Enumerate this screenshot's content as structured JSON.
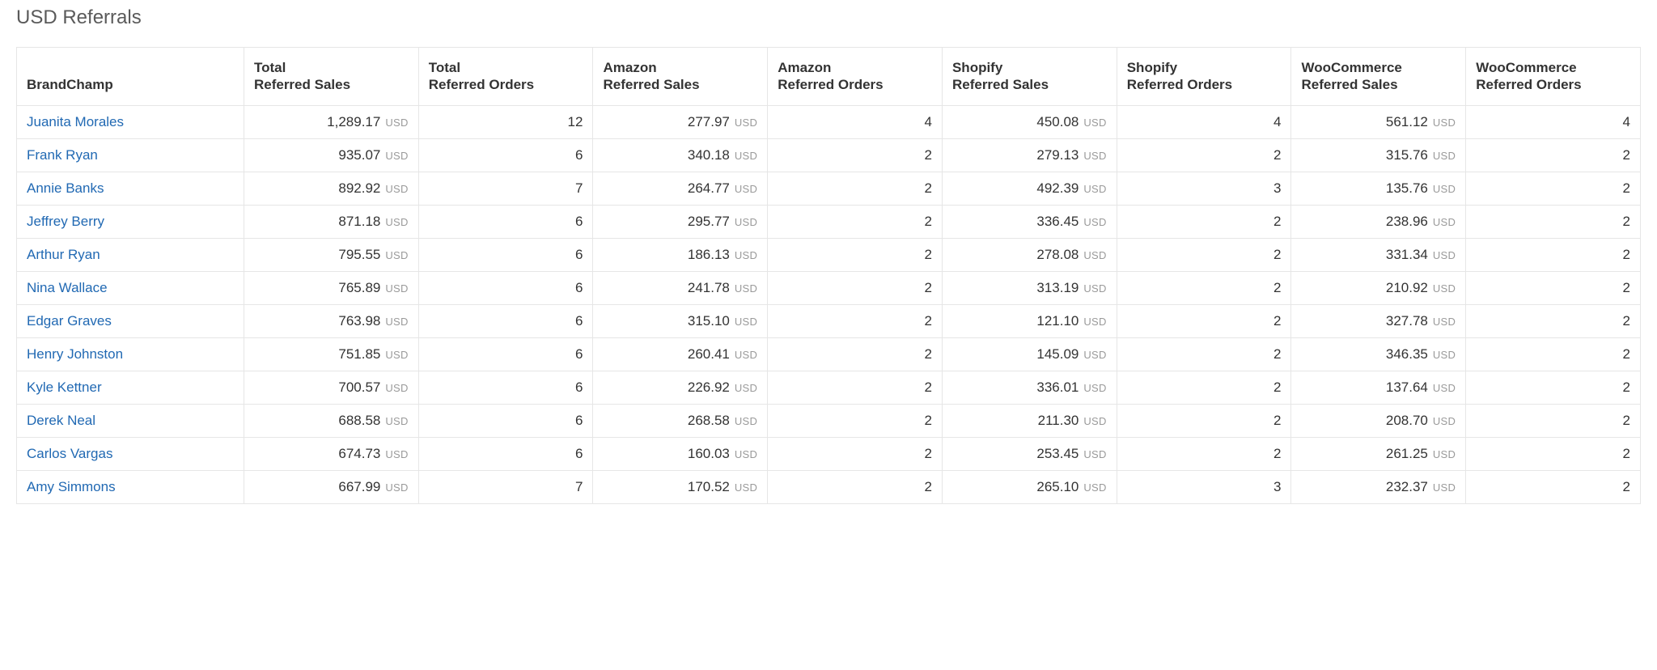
{
  "title": "USD Referrals",
  "currency_label": "USD",
  "colors": {
    "link": "#2169b3",
    "border": "#e6e6e6",
    "text": "#333333",
    "muted": "#9a9a9a",
    "title": "#5a5a5a",
    "background": "#ffffff"
  },
  "table": {
    "columns": [
      {
        "key": "name",
        "label": "BrandChamp",
        "type": "name"
      },
      {
        "key": "total_sales",
        "label": "Total\nReferred Sales",
        "type": "money"
      },
      {
        "key": "total_orders",
        "label": "Total\nReferred Orders",
        "type": "int"
      },
      {
        "key": "amazon_sales",
        "label": "Amazon\nReferred Sales",
        "type": "money"
      },
      {
        "key": "amazon_orders",
        "label": "Amazon\nReferred Orders",
        "type": "int"
      },
      {
        "key": "shopify_sales",
        "label": "Shopify\nReferred Sales",
        "type": "money"
      },
      {
        "key": "shopify_orders",
        "label": "Shopify\nReferred Orders",
        "type": "int"
      },
      {
        "key": "woo_sales",
        "label": "WooCommerce\nReferred Sales",
        "type": "money"
      },
      {
        "key": "woo_orders",
        "label": "WooCommerce\nReferred Orders",
        "type": "int"
      }
    ],
    "rows": [
      {
        "name": "Juanita Morales",
        "total_sales": "1,289.17",
        "total_orders": "12",
        "amazon_sales": "277.97",
        "amazon_orders": "4",
        "shopify_sales": "450.08",
        "shopify_orders": "4",
        "woo_sales": "561.12",
        "woo_orders": "4"
      },
      {
        "name": "Frank Ryan",
        "total_sales": "935.07",
        "total_orders": "6",
        "amazon_sales": "340.18",
        "amazon_orders": "2",
        "shopify_sales": "279.13",
        "shopify_orders": "2",
        "woo_sales": "315.76",
        "woo_orders": "2"
      },
      {
        "name": "Annie Banks",
        "total_sales": "892.92",
        "total_orders": "7",
        "amazon_sales": "264.77",
        "amazon_orders": "2",
        "shopify_sales": "492.39",
        "shopify_orders": "3",
        "woo_sales": "135.76",
        "woo_orders": "2"
      },
      {
        "name": "Jeffrey Berry",
        "total_sales": "871.18",
        "total_orders": "6",
        "amazon_sales": "295.77",
        "amazon_orders": "2",
        "shopify_sales": "336.45",
        "shopify_orders": "2",
        "woo_sales": "238.96",
        "woo_orders": "2"
      },
      {
        "name": "Arthur Ryan",
        "total_sales": "795.55",
        "total_orders": "6",
        "amazon_sales": "186.13",
        "amazon_orders": "2",
        "shopify_sales": "278.08",
        "shopify_orders": "2",
        "woo_sales": "331.34",
        "woo_orders": "2"
      },
      {
        "name": "Nina Wallace",
        "total_sales": "765.89",
        "total_orders": "6",
        "amazon_sales": "241.78",
        "amazon_orders": "2",
        "shopify_sales": "313.19",
        "shopify_orders": "2",
        "woo_sales": "210.92",
        "woo_orders": "2"
      },
      {
        "name": "Edgar Graves",
        "total_sales": "763.98",
        "total_orders": "6",
        "amazon_sales": "315.10",
        "amazon_orders": "2",
        "shopify_sales": "121.10",
        "shopify_orders": "2",
        "woo_sales": "327.78",
        "woo_orders": "2"
      },
      {
        "name": "Henry Johnston",
        "total_sales": "751.85",
        "total_orders": "6",
        "amazon_sales": "260.41",
        "amazon_orders": "2",
        "shopify_sales": "145.09",
        "shopify_orders": "2",
        "woo_sales": "346.35",
        "woo_orders": "2"
      },
      {
        "name": "Kyle Kettner",
        "total_sales": "700.57",
        "total_orders": "6",
        "amazon_sales": "226.92",
        "amazon_orders": "2",
        "shopify_sales": "336.01",
        "shopify_orders": "2",
        "woo_sales": "137.64",
        "woo_orders": "2"
      },
      {
        "name": "Derek Neal",
        "total_sales": "688.58",
        "total_orders": "6",
        "amazon_sales": "268.58",
        "amazon_orders": "2",
        "shopify_sales": "211.30",
        "shopify_orders": "2",
        "woo_sales": "208.70",
        "woo_orders": "2"
      },
      {
        "name": "Carlos Vargas",
        "total_sales": "674.73",
        "total_orders": "6",
        "amazon_sales": "160.03",
        "amazon_orders": "2",
        "shopify_sales": "253.45",
        "shopify_orders": "2",
        "woo_sales": "261.25",
        "woo_orders": "2"
      },
      {
        "name": "Amy Simmons",
        "total_sales": "667.99",
        "total_orders": "7",
        "amazon_sales": "170.52",
        "amazon_orders": "2",
        "shopify_sales": "265.10",
        "shopify_orders": "3",
        "woo_sales": "232.37",
        "woo_orders": "2"
      }
    ]
  }
}
